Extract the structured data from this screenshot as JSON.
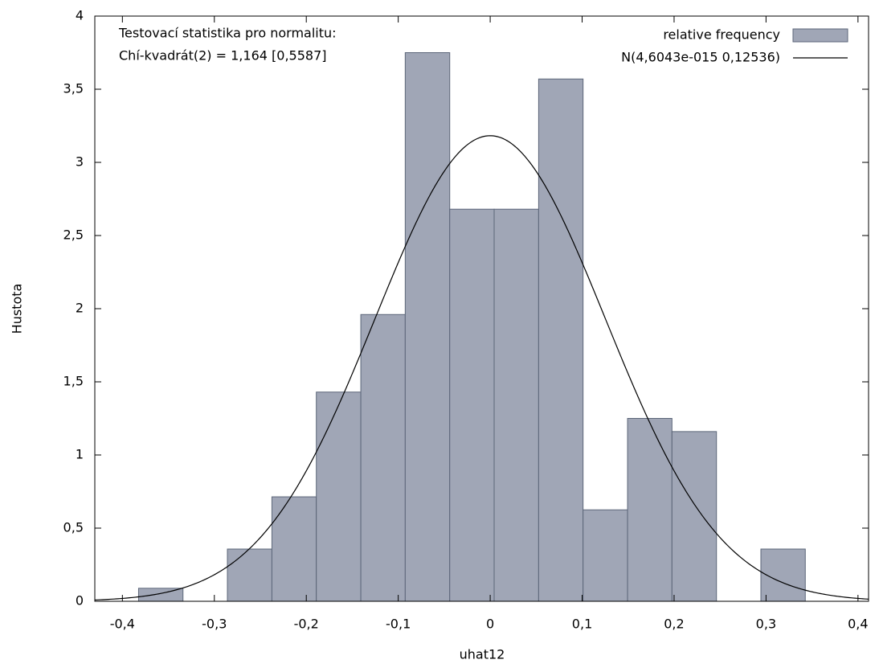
{
  "chart_data": {
    "type": "histogram",
    "xlabel": "uhat12",
    "ylabel": "Hustota",
    "annotations": [
      "Testovací statistika pro normalitu:",
      "Chí-kvadrát(2) = 1,164 [0,5587]"
    ],
    "bins": [
      -0.3824,
      -0.3341,
      -0.2858,
      -0.2374,
      -0.1891,
      -0.1407,
      -0.0924,
      -0.044,
      0.0043,
      0.0527,
      0.101,
      0.1494,
      0.1977,
      0.2461,
      0.2944,
      0.3427
    ],
    "series": [
      {
        "name": "relative frequency",
        "color": "#a0a6b6",
        "values": [
          0.089,
          0,
          0.357,
          0.714,
          1.43,
          1.96,
          3.75,
          2.68,
          2.68,
          3.57,
          0.625,
          1.25,
          1.16,
          0,
          0.357
        ]
      }
    ],
    "curve": {
      "name": "N(4,6043e-015 0,12536)",
      "color": "#000000",
      "mean": 4.6043e-15,
      "sd": 0.12536
    },
    "xlim": [
      -0.43,
      0.4115
    ],
    "ylim": [
      0,
      4
    ],
    "xticks": [
      {
        "value": -0.4,
        "label": "-0,4"
      },
      {
        "value": -0.3,
        "label": "-0,3"
      },
      {
        "value": -0.2,
        "label": "-0,2"
      },
      {
        "value": -0.1,
        "label": "-0,1"
      },
      0,
      {
        "value": 0.1,
        "label": "0,1"
      },
      {
        "value": 0.2,
        "label": "0,2"
      },
      {
        "value": 0.3,
        "label": "0,3"
      },
      {
        "value": 0.4,
        "label": "0,4"
      }
    ],
    "yticks": [
      0,
      {
        "value": 0.5,
        "label": "0,5"
      },
      1,
      {
        "value": 1.5,
        "label": "1,5"
      },
      2,
      {
        "value": 2.5,
        "label": "2,5"
      },
      3,
      {
        "value": 3.5,
        "label": "3,5"
      },
      4
    ],
    "legend": "upper right",
    "grid": false
  }
}
